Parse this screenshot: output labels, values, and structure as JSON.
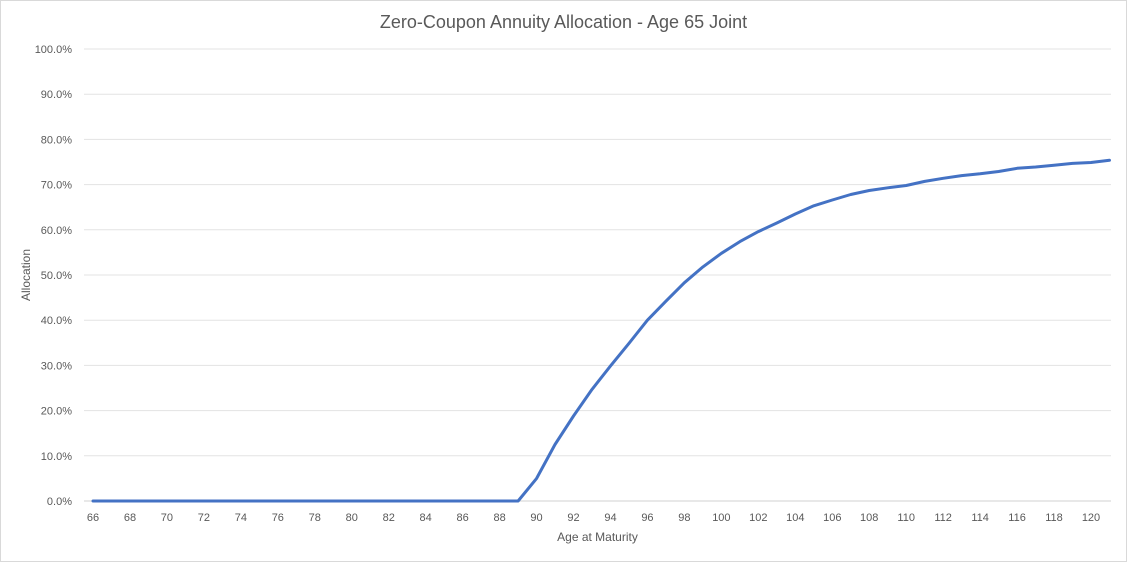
{
  "chart_data": {
    "type": "line",
    "title": "Zero-Coupon Annuity Allocation - Age 65 Joint",
    "xlabel": "Age at Maturity",
    "ylabel": "Allocation",
    "ylim": [
      0,
      100
    ],
    "yticks": [
      "0.0%",
      "10.0%",
      "20.0%",
      "30.0%",
      "40.0%",
      "50.0%",
      "60.0%",
      "70.0%",
      "80.0%",
      "90.0%",
      "100.0%"
    ],
    "xticks": [
      "66",
      "68",
      "70",
      "72",
      "74",
      "76",
      "78",
      "80",
      "82",
      "84",
      "86",
      "88",
      "90",
      "92",
      "94",
      "96",
      "98",
      "100",
      "102",
      "104",
      "106",
      "108",
      "110",
      "112",
      "114",
      "116",
      "118",
      "120"
    ],
    "grid": true,
    "legend": "none",
    "color": "#4472c4",
    "x": [
      66,
      67,
      68,
      69,
      70,
      71,
      72,
      73,
      74,
      75,
      76,
      77,
      78,
      79,
      80,
      81,
      82,
      83,
      84,
      85,
      86,
      87,
      88,
      89,
      90,
      91,
      92,
      93,
      94,
      95,
      96,
      97,
      98,
      99,
      100,
      101,
      102,
      103,
      104,
      105,
      106,
      107,
      108,
      109,
      110,
      111,
      112,
      113,
      114,
      115,
      116,
      117,
      118,
      119,
      120,
      121
    ],
    "values": [
      0,
      0,
      0,
      0,
      0,
      0,
      0,
      0,
      0,
      0,
      0,
      0,
      0,
      0,
      0,
      0,
      0,
      0,
      0,
      0,
      0,
      0,
      0,
      0,
      5.0,
      12.5,
      18.8,
      24.7,
      29.9,
      34.9,
      40.0,
      44.2,
      48.3,
      51.8,
      54.8,
      57.4,
      59.6,
      61.5,
      63.5,
      65.3,
      66.6,
      67.8,
      68.7,
      69.3,
      69.8,
      70.7,
      71.4,
      72.0,
      72.4,
      72.9,
      73.6,
      73.9,
      74.3,
      74.7,
      74.9,
      75.4
    ]
  }
}
